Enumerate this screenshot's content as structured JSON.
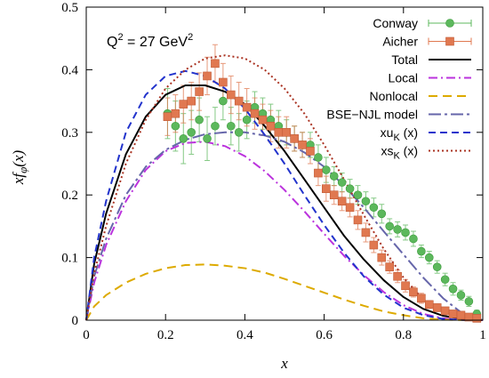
{
  "chart_data": {
    "type": "line",
    "title": "",
    "annotation": {
      "main": "Q",
      "sup1": "2",
      "mid": " = 27 GeV",
      "sup2": "2"
    },
    "xlabel": {
      "main": "x"
    },
    "ylabel": {
      "prefix": "xf",
      "sub": "φ",
      "suffix": "(x)"
    },
    "xlim": [
      0,
      1
    ],
    "ylim": [
      0,
      0.5
    ],
    "xticks": [
      {
        "v": 0,
        "label": "0"
      },
      {
        "v": 0.2,
        "label": "0.2"
      },
      {
        "v": 0.4,
        "label": "0.4"
      },
      {
        "v": 0.6,
        "label": "0.6"
      },
      {
        "v": 0.8,
        "label": "0.8"
      },
      {
        "v": 1,
        "label": "1"
      }
    ],
    "yticks": [
      {
        "v": 0,
        "label": "0"
      },
      {
        "v": 0.1,
        "label": "0.1"
      },
      {
        "v": 0.2,
        "label": "0.2"
      },
      {
        "v": 0.3,
        "label": "0.3"
      },
      {
        "v": 0.4,
        "label": "0.4"
      },
      {
        "v": 0.5,
        "label": "0.5"
      }
    ],
    "legend_position": "top-right",
    "data_series": [
      {
        "name": "Conway",
        "color": "#5cb85c",
        "marker": "circle",
        "points": [
          [
            0.205,
            0.33,
            0.04
          ],
          [
            0.225,
            0.31,
            0.04
          ],
          [
            0.245,
            0.29,
            0.04
          ],
          [
            0.265,
            0.3,
            0.035
          ],
          [
            0.285,
            0.32,
            0.035
          ],
          [
            0.305,
            0.29,
            0.035
          ],
          [
            0.325,
            0.31,
            0.03
          ],
          [
            0.345,
            0.35,
            0.03
          ],
          [
            0.365,
            0.31,
            0.03
          ],
          [
            0.385,
            0.3,
            0.03
          ],
          [
            0.405,
            0.32,
            0.03
          ],
          [
            0.425,
            0.34,
            0.025
          ],
          [
            0.445,
            0.33,
            0.025
          ],
          [
            0.465,
            0.32,
            0.025
          ],
          [
            0.485,
            0.31,
            0.025
          ],
          [
            0.505,
            0.3,
            0.02
          ],
          [
            0.525,
            0.29,
            0.02
          ],
          [
            0.545,
            0.28,
            0.02
          ],
          [
            0.565,
            0.28,
            0.02
          ],
          [
            0.585,
            0.26,
            0.02
          ],
          [
            0.605,
            0.24,
            0.02
          ],
          [
            0.625,
            0.23,
            0.015
          ],
          [
            0.645,
            0.22,
            0.015
          ],
          [
            0.665,
            0.21,
            0.015
          ],
          [
            0.685,
            0.2,
            0.015
          ],
          [
            0.705,
            0.19,
            0.015
          ],
          [
            0.725,
            0.18,
            0.015
          ],
          [
            0.745,
            0.17,
            0.015
          ],
          [
            0.765,
            0.15,
            0.012
          ],
          [
            0.785,
            0.145,
            0.012
          ],
          [
            0.805,
            0.14,
            0.012
          ],
          [
            0.825,
            0.13,
            0.012
          ],
          [
            0.845,
            0.11,
            0.01
          ],
          [
            0.865,
            0.1,
            0.01
          ],
          [
            0.885,
            0.085,
            0.01
          ],
          [
            0.905,
            0.065,
            0.01
          ],
          [
            0.925,
            0.05,
            0.01
          ],
          [
            0.945,
            0.04,
            0.008
          ],
          [
            0.965,
            0.03,
            0.008
          ],
          [
            0.985,
            0.01,
            0.006
          ]
        ]
      },
      {
        "name": "Aicher",
        "color": "#e07850",
        "marker": "square",
        "points": [
          [
            0.205,
            0.325,
            0.03
          ],
          [
            0.225,
            0.33,
            0.03
          ],
          [
            0.245,
            0.345,
            0.03
          ],
          [
            0.265,
            0.35,
            0.03
          ],
          [
            0.285,
            0.365,
            0.03
          ],
          [
            0.305,
            0.39,
            0.03
          ],
          [
            0.325,
            0.41,
            0.03
          ],
          [
            0.345,
            0.38,
            0.03
          ],
          [
            0.365,
            0.36,
            0.03
          ],
          [
            0.385,
            0.35,
            0.03
          ],
          [
            0.405,
            0.34,
            0.03
          ],
          [
            0.425,
            0.33,
            0.025
          ],
          [
            0.445,
            0.32,
            0.025
          ],
          [
            0.465,
            0.31,
            0.025
          ],
          [
            0.485,
            0.3,
            0.025
          ],
          [
            0.505,
            0.3,
            0.025
          ],
          [
            0.525,
            0.29,
            0.02
          ],
          [
            0.545,
            0.28,
            0.02
          ],
          [
            0.565,
            0.27,
            0.02
          ],
          [
            0.585,
            0.235,
            0.02
          ],
          [
            0.605,
            0.21,
            0.02
          ],
          [
            0.625,
            0.2,
            0.015
          ],
          [
            0.645,
            0.19,
            0.015
          ],
          [
            0.665,
            0.18,
            0.015
          ],
          [
            0.685,
            0.16,
            0.015
          ],
          [
            0.705,
            0.14,
            0.015
          ],
          [
            0.725,
            0.12,
            0.012
          ],
          [
            0.745,
            0.1,
            0.012
          ],
          [
            0.765,
            0.085,
            0.01
          ],
          [
            0.785,
            0.07,
            0.01
          ],
          [
            0.805,
            0.055,
            0.01
          ],
          [
            0.825,
            0.045,
            0.008
          ],
          [
            0.845,
            0.035,
            0.008
          ],
          [
            0.865,
            0.025,
            0.006
          ],
          [
            0.885,
            0.02,
            0.006
          ],
          [
            0.905,
            0.015,
            0.005
          ],
          [
            0.925,
            0.01,
            0.004
          ],
          [
            0.945,
            0.008,
            0.004
          ],
          [
            0.965,
            0.005,
            0.003
          ],
          [
            0.985,
            0.003,
            0.002
          ]
        ]
      }
    ],
    "curves": [
      {
        "name": "Total",
        "color": "#000000",
        "dash": "",
        "width": 2,
        "x": [
          0,
          0.02,
          0.05,
          0.1,
          0.15,
          0.2,
          0.25,
          0.3,
          0.35,
          0.4,
          0.45,
          0.5,
          0.55,
          0.6,
          0.65,
          0.7,
          0.75,
          0.8,
          0.85,
          0.9,
          0.95,
          1.0
        ],
        "y": [
          0,
          0.09,
          0.17,
          0.265,
          0.325,
          0.36,
          0.375,
          0.375,
          0.365,
          0.345,
          0.31,
          0.27,
          0.225,
          0.18,
          0.135,
          0.097,
          0.064,
          0.037,
          0.018,
          0.007,
          0.002,
          0
        ]
      },
      {
        "name": "Local",
        "color": "#bb33dd",
        "dash": "10 4 2 4",
        "width": 2,
        "x": [
          0,
          0.02,
          0.05,
          0.1,
          0.15,
          0.2,
          0.25,
          0.3,
          0.35,
          0.4,
          0.45,
          0.5,
          0.55,
          0.6,
          0.65,
          0.7,
          0.75,
          0.8,
          0.85,
          0.9,
          0.95,
          1.0
        ],
        "y": [
          0,
          0.06,
          0.12,
          0.19,
          0.24,
          0.27,
          0.283,
          0.285,
          0.278,
          0.262,
          0.238,
          0.208,
          0.174,
          0.138,
          0.103,
          0.072,
          0.045,
          0.024,
          0.01,
          0.003,
          0.0005,
          0
        ]
      },
      {
        "name": "Nonlocal",
        "color": "#ddaa00",
        "dash": "10 6",
        "width": 2,
        "x": [
          0,
          0.02,
          0.05,
          0.1,
          0.15,
          0.2,
          0.25,
          0.3,
          0.35,
          0.4,
          0.45,
          0.5,
          0.55,
          0.6,
          0.65,
          0.7,
          0.75,
          0.8,
          0.85,
          0.9,
          0.95,
          1.0
        ],
        "y": [
          0,
          0.022,
          0.04,
          0.06,
          0.074,
          0.083,
          0.088,
          0.089,
          0.087,
          0.083,
          0.076,
          0.066,
          0.055,
          0.044,
          0.033,
          0.023,
          0.014,
          0.008,
          0.003,
          0.001,
          0.0002,
          0
        ]
      },
      {
        "name": "BSE−NJL model",
        "color": "#6666aa",
        "dash": "14 4 3 4",
        "width": 2,
        "x": [
          0,
          0.02,
          0.05,
          0.1,
          0.15,
          0.2,
          0.25,
          0.3,
          0.35,
          0.4,
          0.45,
          0.5,
          0.55,
          0.6,
          0.65,
          0.7,
          0.75,
          0.8,
          0.85,
          0.9,
          0.95,
          1.0
        ],
        "y": [
          0,
          0.07,
          0.13,
          0.2,
          0.245,
          0.272,
          0.288,
          0.297,
          0.3,
          0.3,
          0.295,
          0.285,
          0.268,
          0.245,
          0.215,
          0.18,
          0.142,
          0.105,
          0.068,
          0.035,
          0.01,
          0
        ]
      },
      {
        "name": "xu_K (x)",
        "color": "#2233cc",
        "dash": "8 5",
        "width": 2,
        "x": [
          0,
          0.02,
          0.05,
          0.1,
          0.15,
          0.2,
          0.25,
          0.3,
          0.35,
          0.4,
          0.45,
          0.5,
          0.55,
          0.6,
          0.65,
          0.7,
          0.75,
          0.8,
          0.85,
          0.9,
          0.95,
          1.0
        ],
        "y": [
          0,
          0.1,
          0.19,
          0.3,
          0.36,
          0.39,
          0.398,
          0.39,
          0.37,
          0.338,
          0.296,
          0.25,
          0.2,
          0.152,
          0.108,
          0.07,
          0.041,
          0.02,
          0.008,
          0.002,
          0.0003,
          0
        ]
      },
      {
        "name": "xs_K (x)",
        "color": "#aa3322",
        "dash": "2 3",
        "width": 2,
        "x": [
          0,
          0.02,
          0.05,
          0.1,
          0.15,
          0.2,
          0.25,
          0.3,
          0.35,
          0.4,
          0.45,
          0.5,
          0.55,
          0.6,
          0.65,
          0.7,
          0.75,
          0.8,
          0.85,
          0.9,
          0.95,
          1.0
        ],
        "y": [
          0,
          0.075,
          0.15,
          0.25,
          0.32,
          0.37,
          0.4,
          0.418,
          0.423,
          0.418,
          0.4,
          0.37,
          0.33,
          0.28,
          0.225,
          0.168,
          0.114,
          0.068,
          0.033,
          0.011,
          0.002,
          0
        ]
      }
    ],
    "legend": [
      {
        "label": "Conway",
        "kind": "points",
        "ref": "Conway"
      },
      {
        "label": "Aicher",
        "kind": "points",
        "ref": "Aicher"
      },
      {
        "label": "Total",
        "kind": "line",
        "ref": "Total"
      },
      {
        "label": "Local",
        "kind": "line",
        "ref": "Local"
      },
      {
        "label": "Nonlocal",
        "kind": "line",
        "ref": "Nonlocal"
      },
      {
        "label": "BSE−NJL model",
        "kind": "line",
        "ref": "BSE−NJL model"
      },
      {
        "label": "xu",
        "sub": "K",
        "suffix": " (x)",
        "kind": "line",
        "ref": "xu_K (x)"
      },
      {
        "label": "xs",
        "sub": "K",
        "suffix": " (x)",
        "kind": "line",
        "ref": "xs_K (x)"
      }
    ]
  }
}
